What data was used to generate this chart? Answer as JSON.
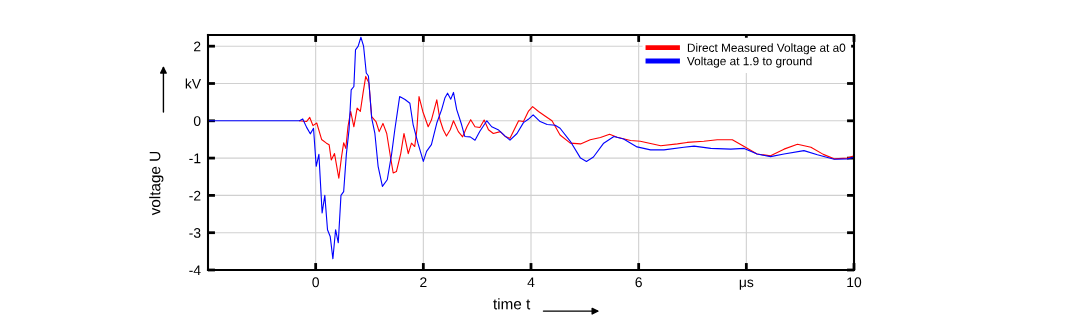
{
  "chart_data": {
    "type": "line",
    "xlabel": "time t",
    "ylabel": "voltage U",
    "xlim": [
      -2,
      10
    ],
    "ylim": [
      -4,
      2.3
    ],
    "xticks": [
      0,
      2,
      4,
      6,
      {
        "value": 8,
        "label": "μs"
      },
      10
    ],
    "yticks": [
      -4,
      -3,
      -2,
      -1,
      0,
      {
        "value": 1,
        "label": "kV"
      },
      2
    ],
    "grid": true,
    "legend": "top right",
    "line_style": "solid",
    "marker": "none",
    "series": [
      {
        "name": "Direct Measured Voltage at a0",
        "color": "#ff0000",
        "x": [
          -0.3,
          -0.17,
          -0.11,
          -0.05,
          0.02,
          0.11,
          0.2,
          0.25,
          0.29,
          0.35,
          0.43,
          0.48,
          0.52,
          0.56,
          0.6,
          0.65,
          0.71,
          0.77,
          0.83,
          0.88,
          0.93,
          0.99,
          1.04,
          1.12,
          1.18,
          1.25,
          1.32,
          1.39,
          1.44,
          1.5,
          1.58,
          1.64,
          1.72,
          1.78,
          1.84,
          1.88,
          1.92,
          1.99,
          2.09,
          2.15,
          2.25,
          2.31,
          2.37,
          2.43,
          2.5,
          2.56,
          2.65,
          2.73,
          2.81,
          2.88,
          2.96,
          3.05,
          3.13,
          3.21,
          3.3,
          3.43,
          3.52,
          3.61,
          3.77,
          3.86,
          3.95,
          4.03,
          4.14,
          4.26,
          4.39,
          4.54,
          4.73,
          4.92,
          5.1,
          5.29,
          5.46,
          5.6,
          5.85,
          6.03,
          6.41,
          6.72,
          6.9,
          7.21,
          7.46,
          7.74,
          7.96,
          8.2,
          8.45,
          8.7,
          8.95,
          9.2,
          9.43,
          9.63,
          9.88,
          10
        ],
        "values": [
          0,
          -0.02,
          0.09,
          -0.13,
          -0.06,
          -0.5,
          -0.6,
          -0.64,
          -1.05,
          -0.88,
          -1.54,
          -0.97,
          -0.59,
          -0.74,
          -0.16,
          0.25,
          -0.16,
          0.34,
          0.25,
          0.74,
          1.19,
          1.01,
          0.11,
          -0.02,
          -0.29,
          -0.07,
          -0.34,
          -0.97,
          -1.4,
          -1.36,
          -0.88,
          -0.34,
          -0.88,
          -0.6,
          -0.69,
          -0.24,
          0.65,
          0.25,
          -0.16,
          0.02,
          0.56,
          0.02,
          -0.24,
          -0.41,
          -0.24,
          0.0,
          -0.29,
          -0.43,
          -0.16,
          0.03,
          -0.16,
          -0.18,
          0.02,
          -0.24,
          -0.34,
          -0.29,
          -0.42,
          -0.47,
          0.0,
          -0.02,
          0.25,
          0.38,
          0.25,
          0.13,
          0.0,
          -0.38,
          -0.6,
          -0.62,
          -0.51,
          -0.45,
          -0.36,
          -0.44,
          -0.53,
          -0.55,
          -0.67,
          -0.62,
          -0.58,
          -0.55,
          -0.51,
          -0.51,
          -0.69,
          -0.89,
          -0.94,
          -0.76,
          -0.63,
          -0.71,
          -0.9,
          -1.02,
          -1.0,
          -0.94
        ]
      },
      {
        "name": "Voltage at 1.9 to ground",
        "color": "#0000ff",
        "x": [
          -2,
          -1,
          -0.3,
          -0.24,
          -0.17,
          -0.1,
          -0.04,
          0.01,
          0.06,
          0.12,
          0.17,
          0.22,
          0.27,
          0.32,
          0.37,
          0.42,
          0.47,
          0.52,
          0.57,
          0.62,
          0.66,
          0.71,
          0.74,
          0.79,
          0.84,
          0.89,
          0.94,
          0.98,
          1.04,
          1.1,
          1.16,
          1.24,
          1.33,
          1.41,
          1.47,
          1.56,
          1.66,
          1.75,
          1.81,
          1.9,
          2.0,
          2.06,
          2.15,
          2.25,
          2.34,
          2.4,
          2.45,
          2.51,
          2.56,
          2.62,
          2.71,
          2.77,
          2.87,
          2.96,
          3.05,
          3.18,
          3.27,
          3.4,
          3.52,
          3.61,
          3.74,
          3.86,
          3.95,
          4.04,
          4.17,
          4.3,
          4.45,
          4.54,
          4.73,
          4.92,
          5.03,
          5.16,
          5.35,
          5.54,
          5.72,
          5.97,
          6.22,
          6.47,
          6.84,
          7.03,
          7.34,
          7.71,
          7.96,
          8.2,
          8.45,
          8.7,
          9.07,
          9.32,
          9.63,
          9.88,
          10
        ],
        "values": [
          0,
          0,
          0,
          0.05,
          -0.17,
          -0.35,
          -0.2,
          -1.22,
          -0.9,
          -2.47,
          -2.0,
          -2.92,
          -3.1,
          -3.7,
          -2.92,
          -3.27,
          -2.0,
          -1.9,
          -0.9,
          -0.24,
          0.83,
          0.92,
          1.9,
          2.0,
          2.24,
          2.0,
          1.28,
          1.2,
          0.08,
          -0.34,
          -1.22,
          -1.76,
          -1.58,
          -0.9,
          -0.24,
          0.65,
          0.57,
          0.47,
          -0.1,
          -0.6,
          -1.09,
          -0.82,
          -0.64,
          -0.06,
          0.3,
          0.61,
          0.74,
          0.58,
          0.76,
          0.3,
          -0.1,
          -0.42,
          -0.43,
          -0.52,
          -0.28,
          0.0,
          -0.16,
          -0.25,
          -0.41,
          -0.52,
          -0.34,
          -0.05,
          0.04,
          0.16,
          -0.02,
          -0.1,
          -0.12,
          -0.2,
          -0.55,
          -1.0,
          -1.09,
          -0.97,
          -0.6,
          -0.42,
          -0.49,
          -0.7,
          -0.78,
          -0.78,
          -0.71,
          -0.68,
          -0.74,
          -0.76,
          -0.74,
          -0.89,
          -0.96,
          -0.89,
          -0.8,
          -0.91,
          -1.03,
          -1.02,
          -0.98
        ]
      }
    ]
  }
}
